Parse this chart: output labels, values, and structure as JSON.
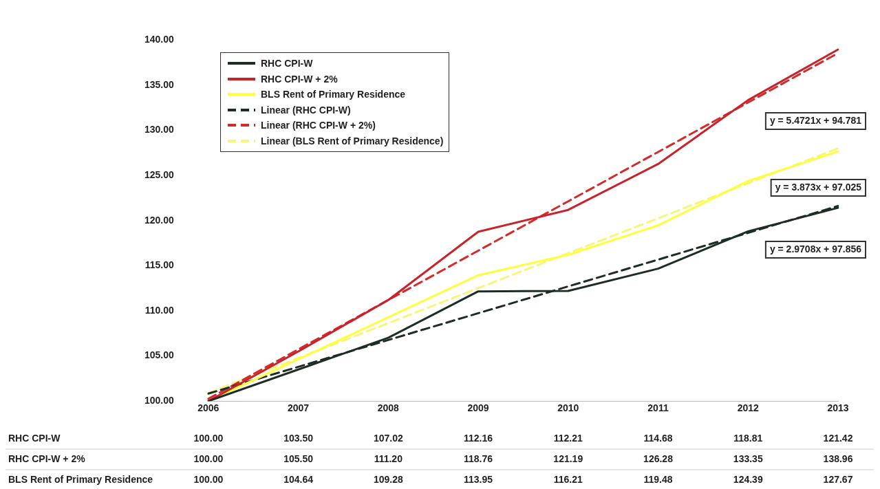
{
  "chart_data": {
    "type": "line",
    "categories": [
      "2006",
      "2007",
      "2008",
      "2009",
      "2010",
      "2011",
      "2012",
      "2013"
    ],
    "series": [
      {
        "name": "RHC CPI-W",
        "color": "#1e2d24",
        "values": [
          100.0,
          103.5,
          107.02,
          112.16,
          112.21,
          114.68,
          118.81,
          121.42
        ],
        "value_labels": [
          "100.00",
          "103.50",
          "107.02",
          "112.16",
          "112.21",
          "114.68",
          "118.81",
          "121.42"
        ]
      },
      {
        "name": "RHC CPI-W + 2%",
        "color": "#c8232b",
        "values": [
          100.0,
          105.5,
          111.2,
          118.76,
          121.19,
          126.28,
          133.35,
          138.96
        ],
        "value_labels": [
          "100.00",
          "105.50",
          "111.20",
          "118.76",
          "121.19",
          "126.28",
          "133.35",
          "138.96"
        ]
      },
      {
        "name": "BLS Rent of Primary Residence",
        "color": "#ffff3c",
        "values": [
          100.0,
          104.64,
          109.28,
          113.95,
          116.21,
          119.48,
          124.39,
          127.67
        ],
        "value_labels": [
          "100.00",
          "104.64",
          "109.28",
          "113.95",
          "116.21",
          "119.48",
          "124.39",
          "127.67"
        ]
      },
      {
        "name": "Linear (RHC CPI-W)",
        "color": "#1e2d24",
        "line_style": "dashed",
        "values": [
          100.83,
          103.8,
          106.77,
          109.74,
          112.71,
          115.68,
          118.65,
          121.62
        ]
      },
      {
        "name": "Linear (RHC CPI-W + 2%)",
        "color": "#d42a2a",
        "line_style": "dashed",
        "values": [
          100.25,
          105.73,
          111.2,
          116.67,
          122.14,
          127.61,
          133.09,
          138.56
        ]
      },
      {
        "name": "Linear (BLS Rent of Primary Residence)",
        "color": "#f6f67a",
        "line_style": "dashed",
        "values": [
          100.9,
          104.77,
          108.64,
          112.52,
          116.39,
          120.26,
          124.14,
          128.01
        ]
      }
    ],
    "ylim": [
      100,
      140
    ],
    "yticks": [
      {
        "value": 100,
        "label": "100.00"
      },
      {
        "value": 105,
        "label": "105.00"
      },
      {
        "value": 110,
        "label": "110.00"
      },
      {
        "value": 115,
        "label": "115.00"
      },
      {
        "value": 120,
        "label": "120.00"
      },
      {
        "value": 125,
        "label": "125.00"
      },
      {
        "value": 130,
        "label": "130.00"
      },
      {
        "value": 135,
        "label": "135.00"
      },
      {
        "value": 140,
        "label": "140.00"
      }
    ],
    "annotations": [
      "y = 5.4721x + 94.781",
      "y = 3.873x + 97.025",
      "y = 2.9708x + 97.856"
    ],
    "legend": "top left",
    "marker": "none",
    "grid": false
  }
}
